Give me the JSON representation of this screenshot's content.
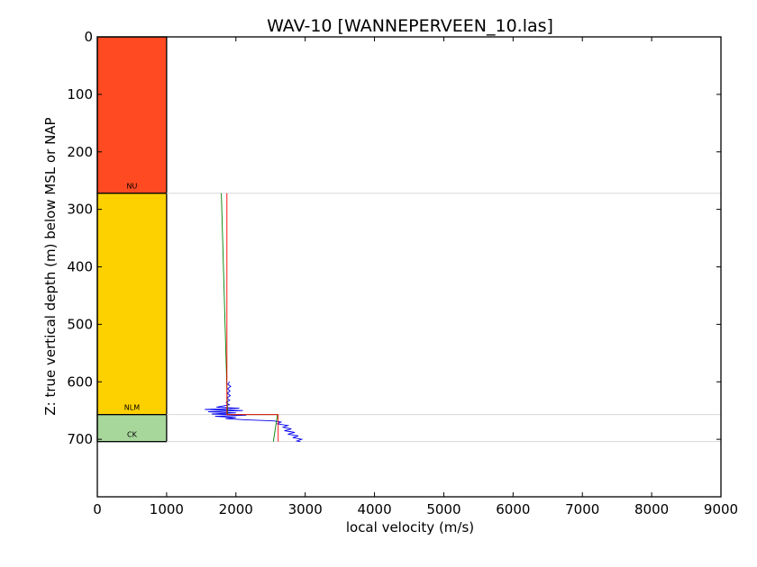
{
  "chart_data": {
    "type": "line",
    "title": "WAV-10 [WANNEPERVEEN_10.las]",
    "xlabel": "local velocity (m/s)",
    "ylabel": "Z: true vertical depth (m) below MSL or NAP",
    "xlim": [
      0,
      9000
    ],
    "ylim": [
      800,
      0
    ],
    "y_inverted": true,
    "grid": false,
    "x_ticks": [
      "0",
      "1000",
      "2000",
      "3000",
      "4000",
      "5000",
      "6000",
      "7000",
      "8000",
      "9000"
    ],
    "y_ticks": [
      "0",
      "100",
      "200",
      "300",
      "400",
      "500",
      "600",
      "700"
    ],
    "units": [
      {
        "name": "NU",
        "top": 0,
        "base": 272,
        "x_min": 0,
        "x_max": 1000,
        "color": "#ff4a22"
      },
      {
        "name": "NLM",
        "top": 272,
        "base": 657,
        "x_min": 0,
        "x_max": 1000,
        "color": "#fdd000"
      },
      {
        "name": "CK",
        "top": 657,
        "base": 704,
        "x_min": 0,
        "x_max": 1000,
        "color": "#a7d79b"
      }
    ],
    "boundaries": [
      272,
      657,
      704
    ],
    "series": [
      {
        "color": "#0000ee",
        "points": [
          [
            1910,
            600
          ],
          [
            1880,
            604
          ],
          [
            1925,
            608
          ],
          [
            1880,
            612
          ],
          [
            1915,
            616
          ],
          [
            1875,
            620
          ],
          [
            1920,
            624
          ],
          [
            1870,
            628
          ],
          [
            1910,
            632
          ],
          [
            1860,
            636
          ],
          [
            1905,
            640
          ],
          [
            1720,
            644
          ],
          [
            2050,
            646
          ],
          [
            1550,
            648
          ],
          [
            2100,
            650
          ],
          [
            1600,
            652
          ],
          [
            2000,
            654
          ],
          [
            1650,
            656
          ],
          [
            2150,
            658
          ],
          [
            1700,
            660
          ],
          [
            2000,
            662
          ],
          [
            1850,
            664
          ],
          [
            2130,
            666
          ],
          [
            2550,
            668
          ],
          [
            2650,
            670
          ],
          [
            2600,
            673
          ],
          [
            2750,
            676
          ],
          [
            2680,
            679
          ],
          [
            2800,
            682
          ],
          [
            2700,
            685
          ],
          [
            2850,
            688
          ],
          [
            2750,
            691
          ],
          [
            2900,
            694
          ],
          [
            2820,
            697
          ],
          [
            2950,
            700
          ],
          [
            2880,
            703
          ],
          [
            2930,
            704
          ]
        ]
      },
      {
        "color": "#008000",
        "points": [
          [
            1790,
            272
          ],
          [
            1880,
            657
          ],
          [
            2600,
            657
          ],
          [
            2540,
            704
          ]
        ]
      },
      {
        "color": "#ff0000",
        "points": [
          [
            1870,
            272
          ],
          [
            1870,
            657
          ],
          [
            2610,
            657
          ],
          [
            2610,
            704
          ]
        ]
      }
    ]
  }
}
